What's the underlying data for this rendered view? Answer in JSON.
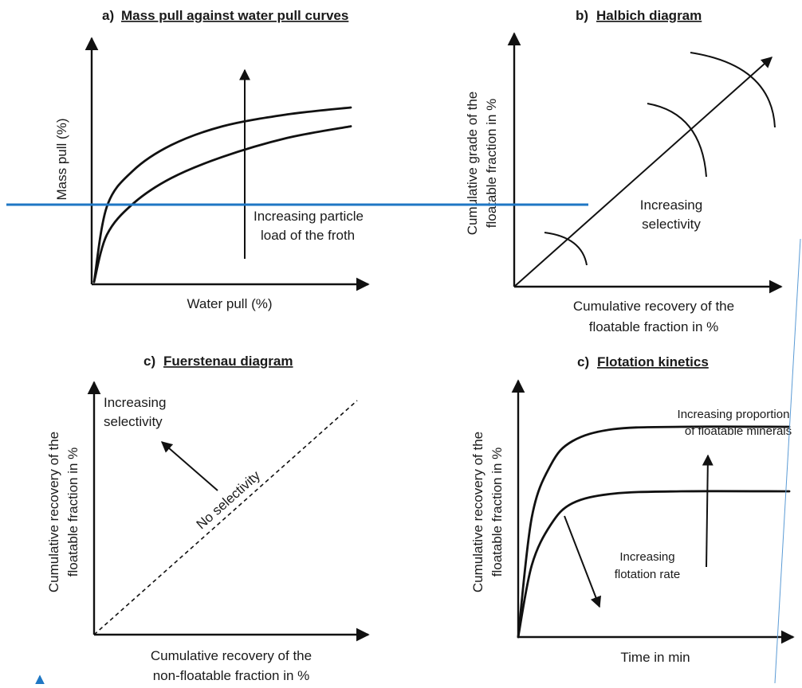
{
  "chart_data": [
    {
      "id": "a",
      "type": "line",
      "title_prefix": "a)",
      "title": "Mass pull against water pull curves",
      "xlabel": "Water pull (%)",
      "ylabel": "Mass pull (%)",
      "annotation": [
        "Increasing particle",
        "load of the  froth"
      ],
      "series": [
        {
          "x": [
            0,
            0.05,
            0.15,
            0.3,
            0.5,
            0.75,
            1.0
          ],
          "y": [
            0,
            0.32,
            0.47,
            0.58,
            0.66,
            0.71,
            0.74
          ]
        },
        {
          "x": [
            0,
            0.05,
            0.15,
            0.3,
            0.5,
            0.75,
            1.0
          ],
          "y": [
            0,
            0.2,
            0.33,
            0.44,
            0.53,
            0.61,
            0.66
          ]
        }
      ]
    },
    {
      "id": "b",
      "type": "diagram",
      "title_prefix": "b)",
      "title": "Halbich diagram",
      "xlabel": [
        "Cumulative recovery of the",
        "floatable fraction in %"
      ],
      "ylabel": [
        "Cumulative grade of the",
        "floatable fraction in %"
      ],
      "annotation": [
        "Increasing",
        "selectivity"
      ]
    },
    {
      "id": "c",
      "type": "diagram",
      "title_prefix": "c)",
      "title": "Fuerstenau diagram",
      "xlabel": [
        "Cumulative recovery of the",
        "non-floatable fraction in %"
      ],
      "ylabel": [
        "Cumulative recovery of the",
        "floatable fraction in %"
      ],
      "annotation": [
        "Increasing",
        "selectivity"
      ],
      "diagonal_label": "No selectivity"
    },
    {
      "id": "d",
      "type": "line",
      "title_prefix": "c)",
      "title": "Flotation kinetics",
      "xlabel": "Time in min",
      "ylabel": [
        "Cumulative recovery of the",
        "floatable fraction in %"
      ],
      "annotation_top": [
        "Increasing proportion",
        "of floatable minerals"
      ],
      "annotation_mid": [
        "Increasing",
        "flotation rate"
      ],
      "series": [
        {
          "x": [
            0,
            0.05,
            0.12,
            0.2,
            0.35,
            0.6,
            1.0
          ],
          "y": [
            0,
            0.5,
            0.72,
            0.82,
            0.87,
            0.88,
            0.88
          ]
        },
        {
          "x": [
            0,
            0.05,
            0.12,
            0.2,
            0.35,
            0.6,
            1.0
          ],
          "y": [
            0,
            0.3,
            0.47,
            0.56,
            0.6,
            0.61,
            0.61
          ]
        }
      ]
    }
  ],
  "colors": {
    "ink": "#111111",
    "overlay_line": "#1f77c4",
    "edge_line": "#5b9bd5"
  }
}
